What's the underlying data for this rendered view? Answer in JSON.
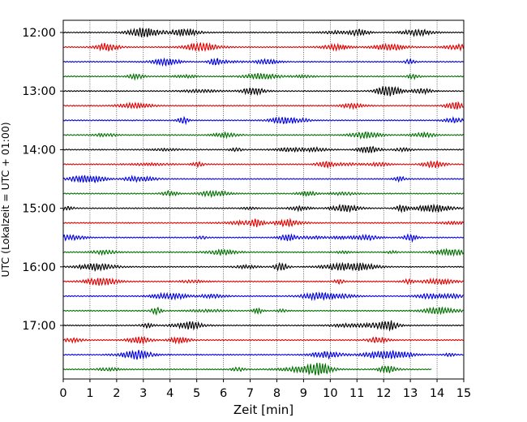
{
  "chart_data": {
    "type": "line",
    "title": "",
    "xlabel": "Zeit  [min]",
    "ylabel": "UTC (Lokalzeit = UTC + 01:00)",
    "xlim": [
      0,
      15
    ],
    "x_ticks": [
      "0",
      "1",
      "2",
      "3",
      "4",
      "5",
      "6",
      "7",
      "8",
      "9",
      "10",
      "11",
      "12",
      "13",
      "14",
      "15"
    ],
    "y_ticks": [
      "12:00",
      "13:00",
      "14:00",
      "15:00",
      "16:00",
      "17:00"
    ],
    "grid": "vertical dotted at each minute",
    "trace_minutes": 15,
    "traces_per_hour": 4,
    "trace_count": 24,
    "color_cycle": [
      "#000000",
      "#e00000",
      "#0000e0",
      "#007000"
    ],
    "last_trace_end_min": 13.8
  }
}
